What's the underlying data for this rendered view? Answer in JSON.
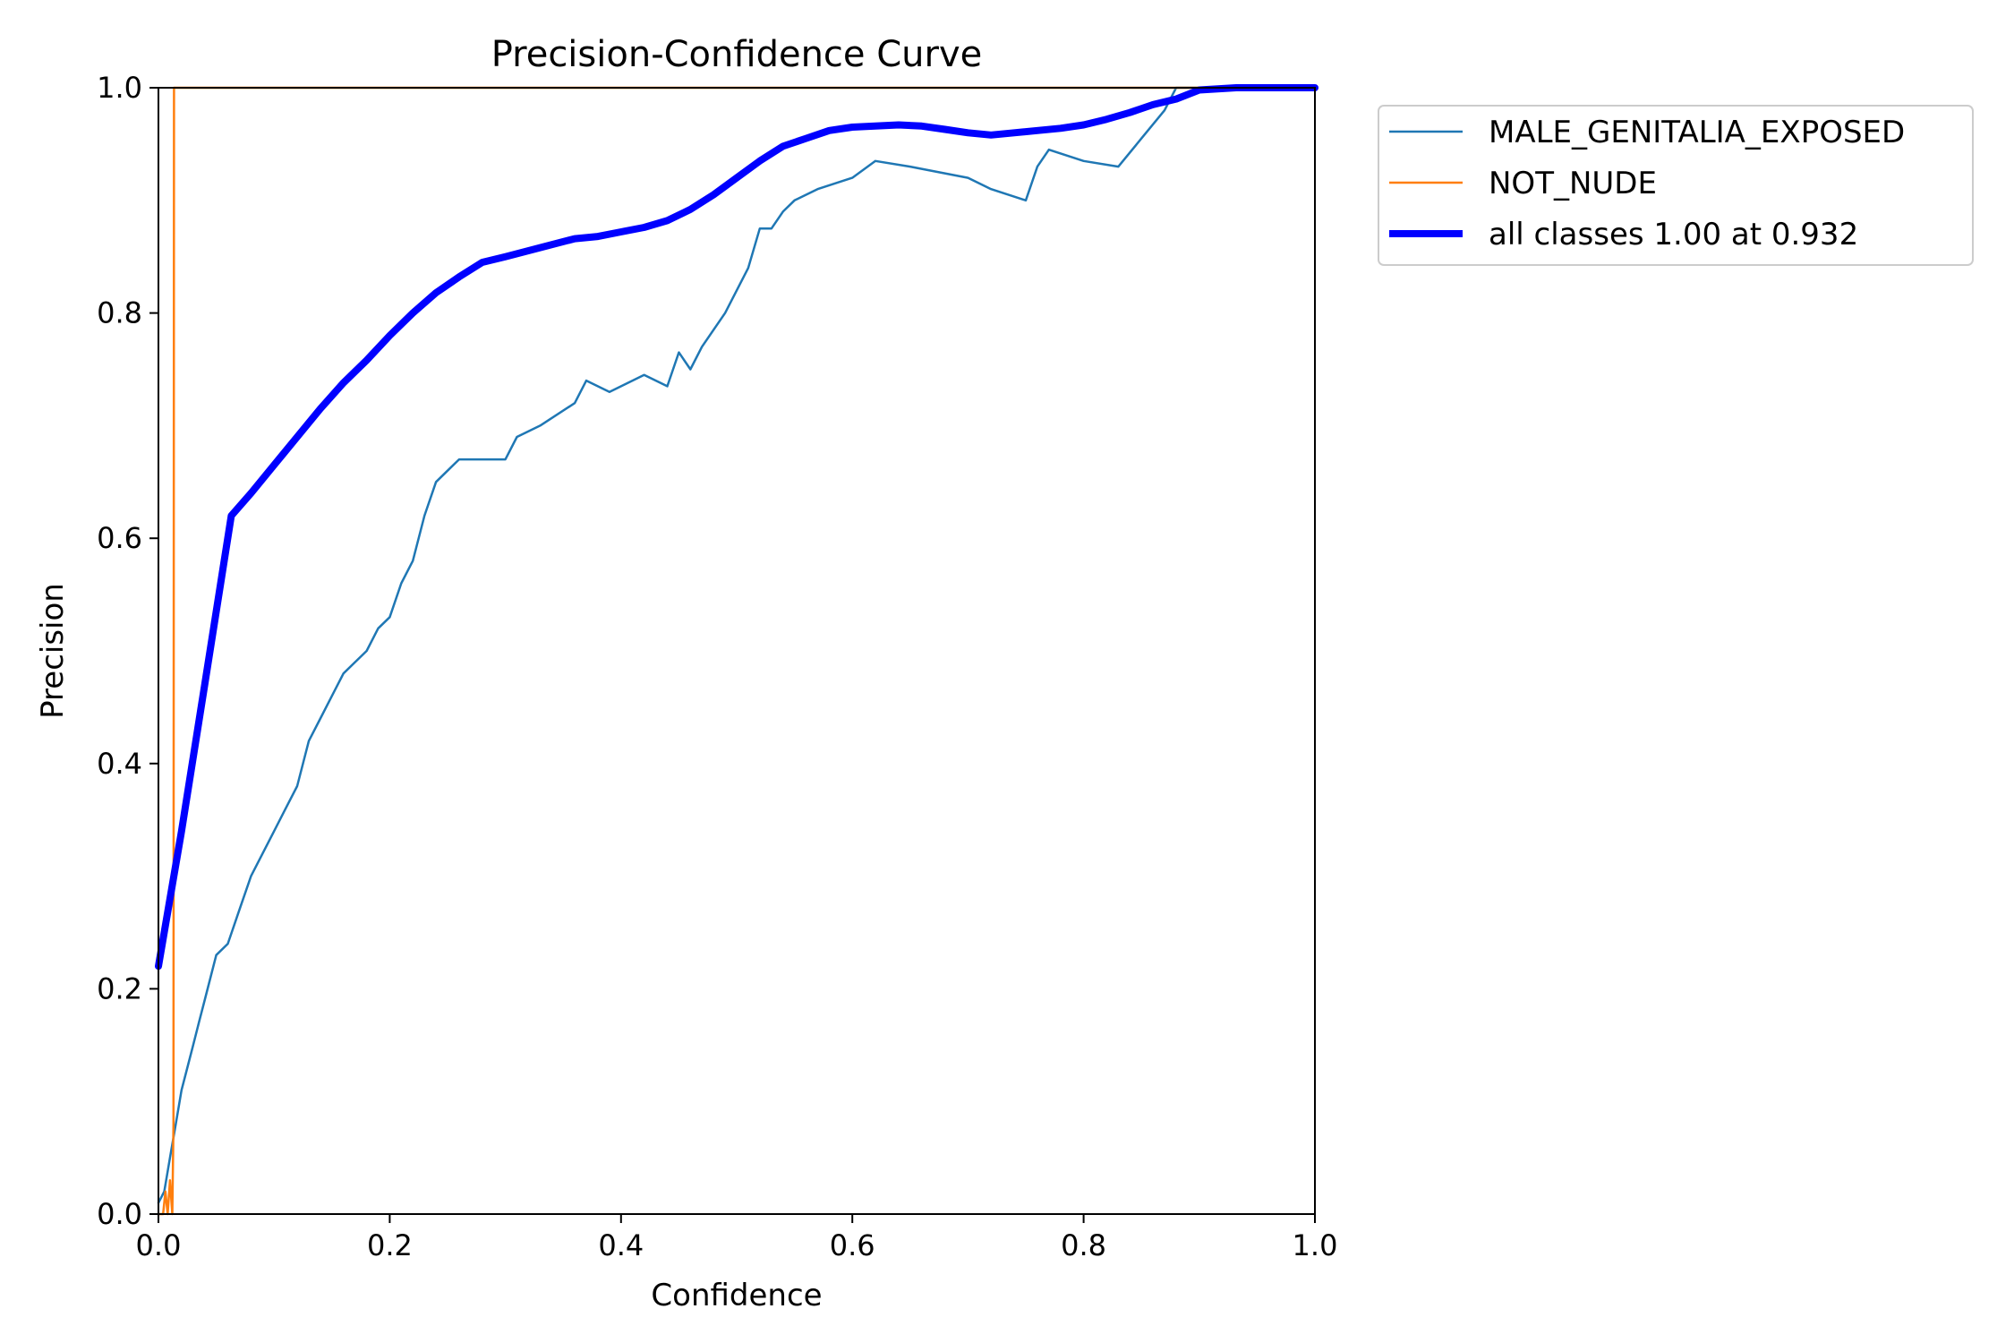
{
  "chart_data": {
    "type": "line",
    "title": "Precision-Confidence Curve",
    "xlabel": "Confidence",
    "ylabel": "Precision",
    "xlim": [
      0,
      1
    ],
    "ylim": [
      0,
      1
    ],
    "xticks": [
      "0.0",
      "0.2",
      "0.4",
      "0.6",
      "0.8",
      "1.0"
    ],
    "yticks": [
      "0.0",
      "0.2",
      "0.4",
      "0.6",
      "0.8",
      "1.0"
    ],
    "grid": false,
    "legend_position": "outside-top-right",
    "series": [
      {
        "name": "MALE_GENITALIA_EXPOSED",
        "color": "#1f77b4",
        "width": "thin",
        "x": [
          0.0,
          0.005,
          0.01,
          0.015,
          0.02,
          0.025,
          0.03,
          0.035,
          0.04,
          0.05,
          0.06,
          0.07,
          0.08,
          0.09,
          0.1,
          0.11,
          0.12,
          0.13,
          0.14,
          0.15,
          0.16,
          0.17,
          0.18,
          0.19,
          0.2,
          0.21,
          0.22,
          0.23,
          0.24,
          0.25,
          0.26,
          0.27,
          0.28,
          0.3,
          0.31,
          0.33,
          0.36,
          0.37,
          0.39,
          0.42,
          0.44,
          0.45,
          0.46,
          0.47,
          0.49,
          0.51,
          0.52,
          0.53,
          0.54,
          0.55,
          0.57,
          0.6,
          0.62,
          0.65,
          0.7,
          0.72,
          0.75,
          0.76,
          0.77,
          0.8,
          0.83,
          0.85,
          0.87,
          0.88,
          0.9,
          0.93,
          1.0
        ],
        "y": [
          0.01,
          0.02,
          0.05,
          0.08,
          0.11,
          0.13,
          0.15,
          0.17,
          0.19,
          0.23,
          0.24,
          0.27,
          0.3,
          0.32,
          0.34,
          0.36,
          0.38,
          0.42,
          0.44,
          0.46,
          0.48,
          0.49,
          0.5,
          0.52,
          0.53,
          0.56,
          0.58,
          0.62,
          0.65,
          0.66,
          0.67,
          0.67,
          0.67,
          0.67,
          0.69,
          0.7,
          0.72,
          0.74,
          0.73,
          0.745,
          0.735,
          0.765,
          0.75,
          0.77,
          0.8,
          0.84,
          0.875,
          0.875,
          0.89,
          0.9,
          0.91,
          0.92,
          0.935,
          0.93,
          0.92,
          0.91,
          0.9,
          0.93,
          0.945,
          0.935,
          0.93,
          0.955,
          0.98,
          1.0,
          1.0,
          1.0,
          1.0
        ]
      },
      {
        "name": "NOT_NUDE",
        "color": "#ff7f0e",
        "width": "thin",
        "x": [
          0.0,
          0.004,
          0.006,
          0.008,
          0.01,
          0.012,
          0.013,
          0.0135,
          0.014,
          0.0145,
          1.0
        ],
        "y": [
          0.0,
          0.0,
          0.02,
          0.0,
          0.03,
          0.0,
          0.08,
          1.0,
          1.0,
          1.0,
          1.0
        ]
      },
      {
        "name": "all classes 1.00 at 0.932",
        "color": "#0000ff",
        "width": "thick",
        "x": [
          0.0,
          0.02,
          0.04,
          0.063,
          0.08,
          0.1,
          0.12,
          0.14,
          0.16,
          0.18,
          0.2,
          0.22,
          0.24,
          0.26,
          0.28,
          0.3,
          0.33,
          0.36,
          0.38,
          0.4,
          0.42,
          0.44,
          0.46,
          0.48,
          0.5,
          0.52,
          0.54,
          0.56,
          0.58,
          0.6,
          0.62,
          0.64,
          0.66,
          0.68,
          0.7,
          0.72,
          0.74,
          0.76,
          0.78,
          0.8,
          0.82,
          0.84,
          0.86,
          0.88,
          0.9,
          0.932,
          0.95,
          1.0
        ],
        "y": [
          0.22,
          0.34,
          0.47,
          0.62,
          0.64,
          0.665,
          0.69,
          0.715,
          0.738,
          0.758,
          0.78,
          0.8,
          0.818,
          0.832,
          0.845,
          0.85,
          0.858,
          0.866,
          0.868,
          0.872,
          0.876,
          0.882,
          0.892,
          0.905,
          0.92,
          0.935,
          0.948,
          0.955,
          0.962,
          0.965,
          0.966,
          0.967,
          0.966,
          0.963,
          0.96,
          0.958,
          0.96,
          0.962,
          0.964,
          0.967,
          0.972,
          0.978,
          0.985,
          0.99,
          0.998,
          1.0,
          1.0,
          1.0
        ]
      }
    ]
  }
}
